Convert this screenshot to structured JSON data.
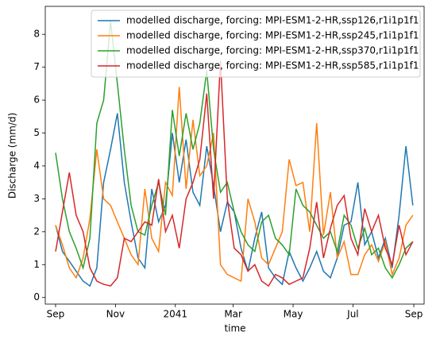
{
  "chart_data": {
    "type": "line",
    "xlabel": "time",
    "ylabel": "Discharge (mm/d)",
    "x": [
      0,
      7,
      14,
      21,
      28,
      35,
      42,
      49,
      56,
      63,
      70,
      77,
      84,
      91,
      98,
      105,
      112,
      119,
      126,
      133,
      140,
      147,
      154,
      161,
      168,
      175,
      182,
      189,
      196,
      203,
      210,
      217,
      224,
      231,
      238,
      245,
      252,
      259,
      266,
      273,
      280,
      287,
      294,
      301,
      308,
      315,
      322,
      329,
      336,
      343,
      350,
      357,
      364
    ],
    "xlim": [
      -10.5,
      375.5
    ],
    "xticks": [
      {
        "value": 0,
        "label": "Sep"
      },
      {
        "value": 61,
        "label": "Nov"
      },
      {
        "value": 122,
        "label": "2041"
      },
      {
        "value": 181,
        "label": "Mar"
      },
      {
        "value": 242,
        "label": "May"
      },
      {
        "value": 303,
        "label": "Jul"
      },
      {
        "value": 365,
        "label": "Sep"
      }
    ],
    "ylim": [
      -0.2,
      8.85
    ],
    "yticks": [
      0,
      1,
      2,
      3,
      4,
      5,
      6,
      7,
      8
    ],
    "legend": "upper right",
    "series": [
      {
        "name": "modelled discharge, forcing: MPI-ESM1-2-HR,ssp126,r1i1p1f1",
        "color": "#1f77b4",
        "values": [
          2.2,
          1.4,
          1.1,
          0.8,
          0.5,
          0.35,
          0.9,
          3.5,
          4.5,
          5.6,
          3.5,
          2.3,
          1.2,
          0.9,
          3.3,
          2.3,
          2.8,
          5.0,
          3.5,
          4.8,
          3.2,
          2.8,
          4.6,
          3.4,
          2.0,
          2.9,
          2.6,
          1.5,
          0.8,
          1.8,
          2.6,
          0.9,
          0.6,
          0.4,
          1.4,
          0.9,
          0.5,
          0.9,
          1.4,
          0.8,
          0.6,
          1.2,
          2.2,
          2.3,
          3.5,
          1.6,
          2.0,
          1.2,
          1.8,
          0.9,
          2.5,
          4.6,
          2.8
        ]
      },
      {
        "name": "modelled discharge, forcing: MPI-ESM1-2-HR,ssp245,r1i1p1f1",
        "color": "#ff7f0e",
        "values": [
          2.2,
          1.6,
          0.9,
          0.6,
          1.2,
          2.4,
          4.5,
          3.0,
          2.8,
          2.3,
          1.8,
          1.3,
          1.0,
          3.3,
          1.8,
          1.4,
          3.5,
          3.1,
          6.4,
          3.3,
          5.4,
          3.7,
          4.0,
          5.0,
          1.0,
          0.7,
          0.6,
          0.5,
          3.0,
          2.3,
          1.2,
          1.0,
          1.5,
          2.0,
          4.2,
          3.4,
          3.5,
          2.0,
          5.3,
          1.9,
          3.2,
          1.2,
          1.7,
          0.7,
          0.7,
          1.3,
          1.6,
          1.1,
          1.7,
          0.7,
          1.2,
          2.2,
          2.5
        ]
      },
      {
        "name": "modelled discharge, forcing: MPI-ESM1-2-HR,ssp370,r1i1p1f1",
        "color": "#2ca02c",
        "values": [
          4.4,
          3.0,
          2.0,
          1.5,
          0.9,
          1.8,
          5.3,
          6.0,
          8.4,
          6.5,
          4.5,
          2.8,
          2.0,
          1.9,
          2.8,
          3.5,
          2.5,
          5.7,
          4.3,
          5.6,
          4.5,
          5.3,
          6.9,
          4.5,
          3.2,
          3.5,
          2.6,
          2.0,
          1.6,
          1.4,
          2.3,
          2.5,
          1.8,
          1.6,
          1.3,
          3.3,
          2.8,
          2.6,
          2.2,
          1.8,
          2.0,
          1.4,
          2.5,
          2.2,
          1.5,
          2.1,
          1.3,
          1.5,
          0.9,
          0.6,
          1.0,
          1.5,
          1.7
        ]
      },
      {
        "name": "modelled discharge, forcing: MPI-ESM1-2-HR,ssp585,r1i1p1f1",
        "color": "#d62728",
        "values": [
          1.4,
          2.6,
          3.8,
          2.5,
          2.0,
          0.9,
          0.5,
          0.4,
          0.35,
          0.6,
          1.8,
          1.7,
          2.0,
          2.3,
          2.2,
          3.6,
          2.0,
          2.5,
          1.5,
          3.0,
          3.5,
          4.2,
          6.2,
          3.0,
          7.2,
          3.0,
          1.5,
          1.3,
          0.8,
          1.0,
          0.5,
          0.35,
          0.7,
          0.6,
          0.4,
          0.5,
          0.6,
          1.5,
          2.9,
          1.2,
          2.1,
          2.8,
          3.1,
          1.8,
          1.3,
          2.7,
          2.0,
          2.5,
          1.5,
          1.0,
          2.2,
          1.3,
          1.7
        ]
      }
    ]
  }
}
